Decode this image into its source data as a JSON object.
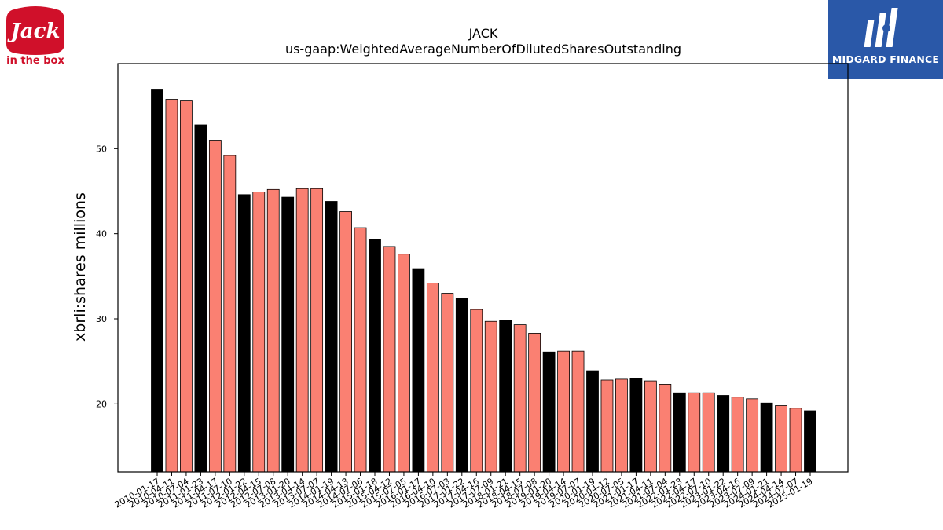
{
  "brand": {
    "left_logo_top": "Jack",
    "left_logo_bottom": "in the box",
    "right_logo_text": "MIDGARD FINANCE",
    "right_logo_color": "#2a58a8",
    "left_logo_color": "#d0102a"
  },
  "chart_data": {
    "type": "bar",
    "title": "JACK",
    "subtitle": "us-gaap:WeightedAverageNumberOfDilutedSharesOutstanding",
    "xlabel": "",
    "ylabel": "xbrli:shares millions",
    "ylim": [
      12,
      60
    ],
    "yticks": [
      20,
      30,
      40,
      50
    ],
    "grid": false,
    "colors": {
      "annual": "#000000",
      "quarterly": "#fa8072",
      "edge": "#000000"
    },
    "categories": [
      "2010-01-17",
      "2010-04-11",
      "2010-07-04",
      "2011-01-23",
      "2011-04-17",
      "2011-07-10",
      "2012-01-22",
      "2012-04-15",
      "2012-07-08",
      "2013-01-20",
      "2013-04-14",
      "2013-07-07",
      "2014-01-19",
      "2014-04-13",
      "2014-07-06",
      "2015-01-18",
      "2015-04-12",
      "2015-07-05",
      "2016-01-17",
      "2016-04-10",
      "2016-07-03",
      "2017-01-22",
      "2017-04-16",
      "2017-07-09",
      "2018-01-21",
      "2018-04-15",
      "2018-07-08",
      "2019-01-20",
      "2019-04-14",
      "2019-07-07",
      "2020-01-19",
      "2020-04-12",
      "2020-07-05",
      "2021-01-17",
      "2021-04-11",
      "2021-07-04",
      "2022-01-23",
      "2022-04-17",
      "2022-07-10",
      "2023-01-22",
      "2023-04-16",
      "2023-07-09",
      "2024-01-21",
      "2024-04-14",
      "2024-07-07",
      "2025-01-19"
    ],
    "values": [
      57.0,
      55.8,
      55.7,
      52.8,
      51.0,
      49.2,
      44.6,
      44.9,
      45.2,
      44.3,
      45.3,
      45.3,
      43.8,
      42.6,
      40.7,
      39.3,
      38.5,
      37.6,
      35.9,
      34.2,
      33.0,
      32.4,
      31.1,
      29.7,
      29.8,
      29.3,
      28.3,
      26.1,
      26.2,
      26.2,
      23.9,
      22.8,
      22.9,
      23.0,
      22.7,
      22.3,
      21.3,
      21.3,
      21.3,
      21.0,
      20.8,
      20.6,
      20.1,
      19.8,
      19.5,
      19.2
    ],
    "bar_kind": [
      "annual",
      "quarterly",
      "quarterly",
      "annual",
      "quarterly",
      "quarterly",
      "annual",
      "quarterly",
      "quarterly",
      "annual",
      "quarterly",
      "quarterly",
      "annual",
      "quarterly",
      "quarterly",
      "annual",
      "quarterly",
      "quarterly",
      "annual",
      "quarterly",
      "quarterly",
      "annual",
      "quarterly",
      "quarterly",
      "annual",
      "quarterly",
      "quarterly",
      "annual",
      "quarterly",
      "quarterly",
      "annual",
      "quarterly",
      "quarterly",
      "annual",
      "quarterly",
      "quarterly",
      "annual",
      "quarterly",
      "quarterly",
      "annual",
      "quarterly",
      "quarterly",
      "annual",
      "quarterly",
      "quarterly",
      "annual"
    ]
  }
}
